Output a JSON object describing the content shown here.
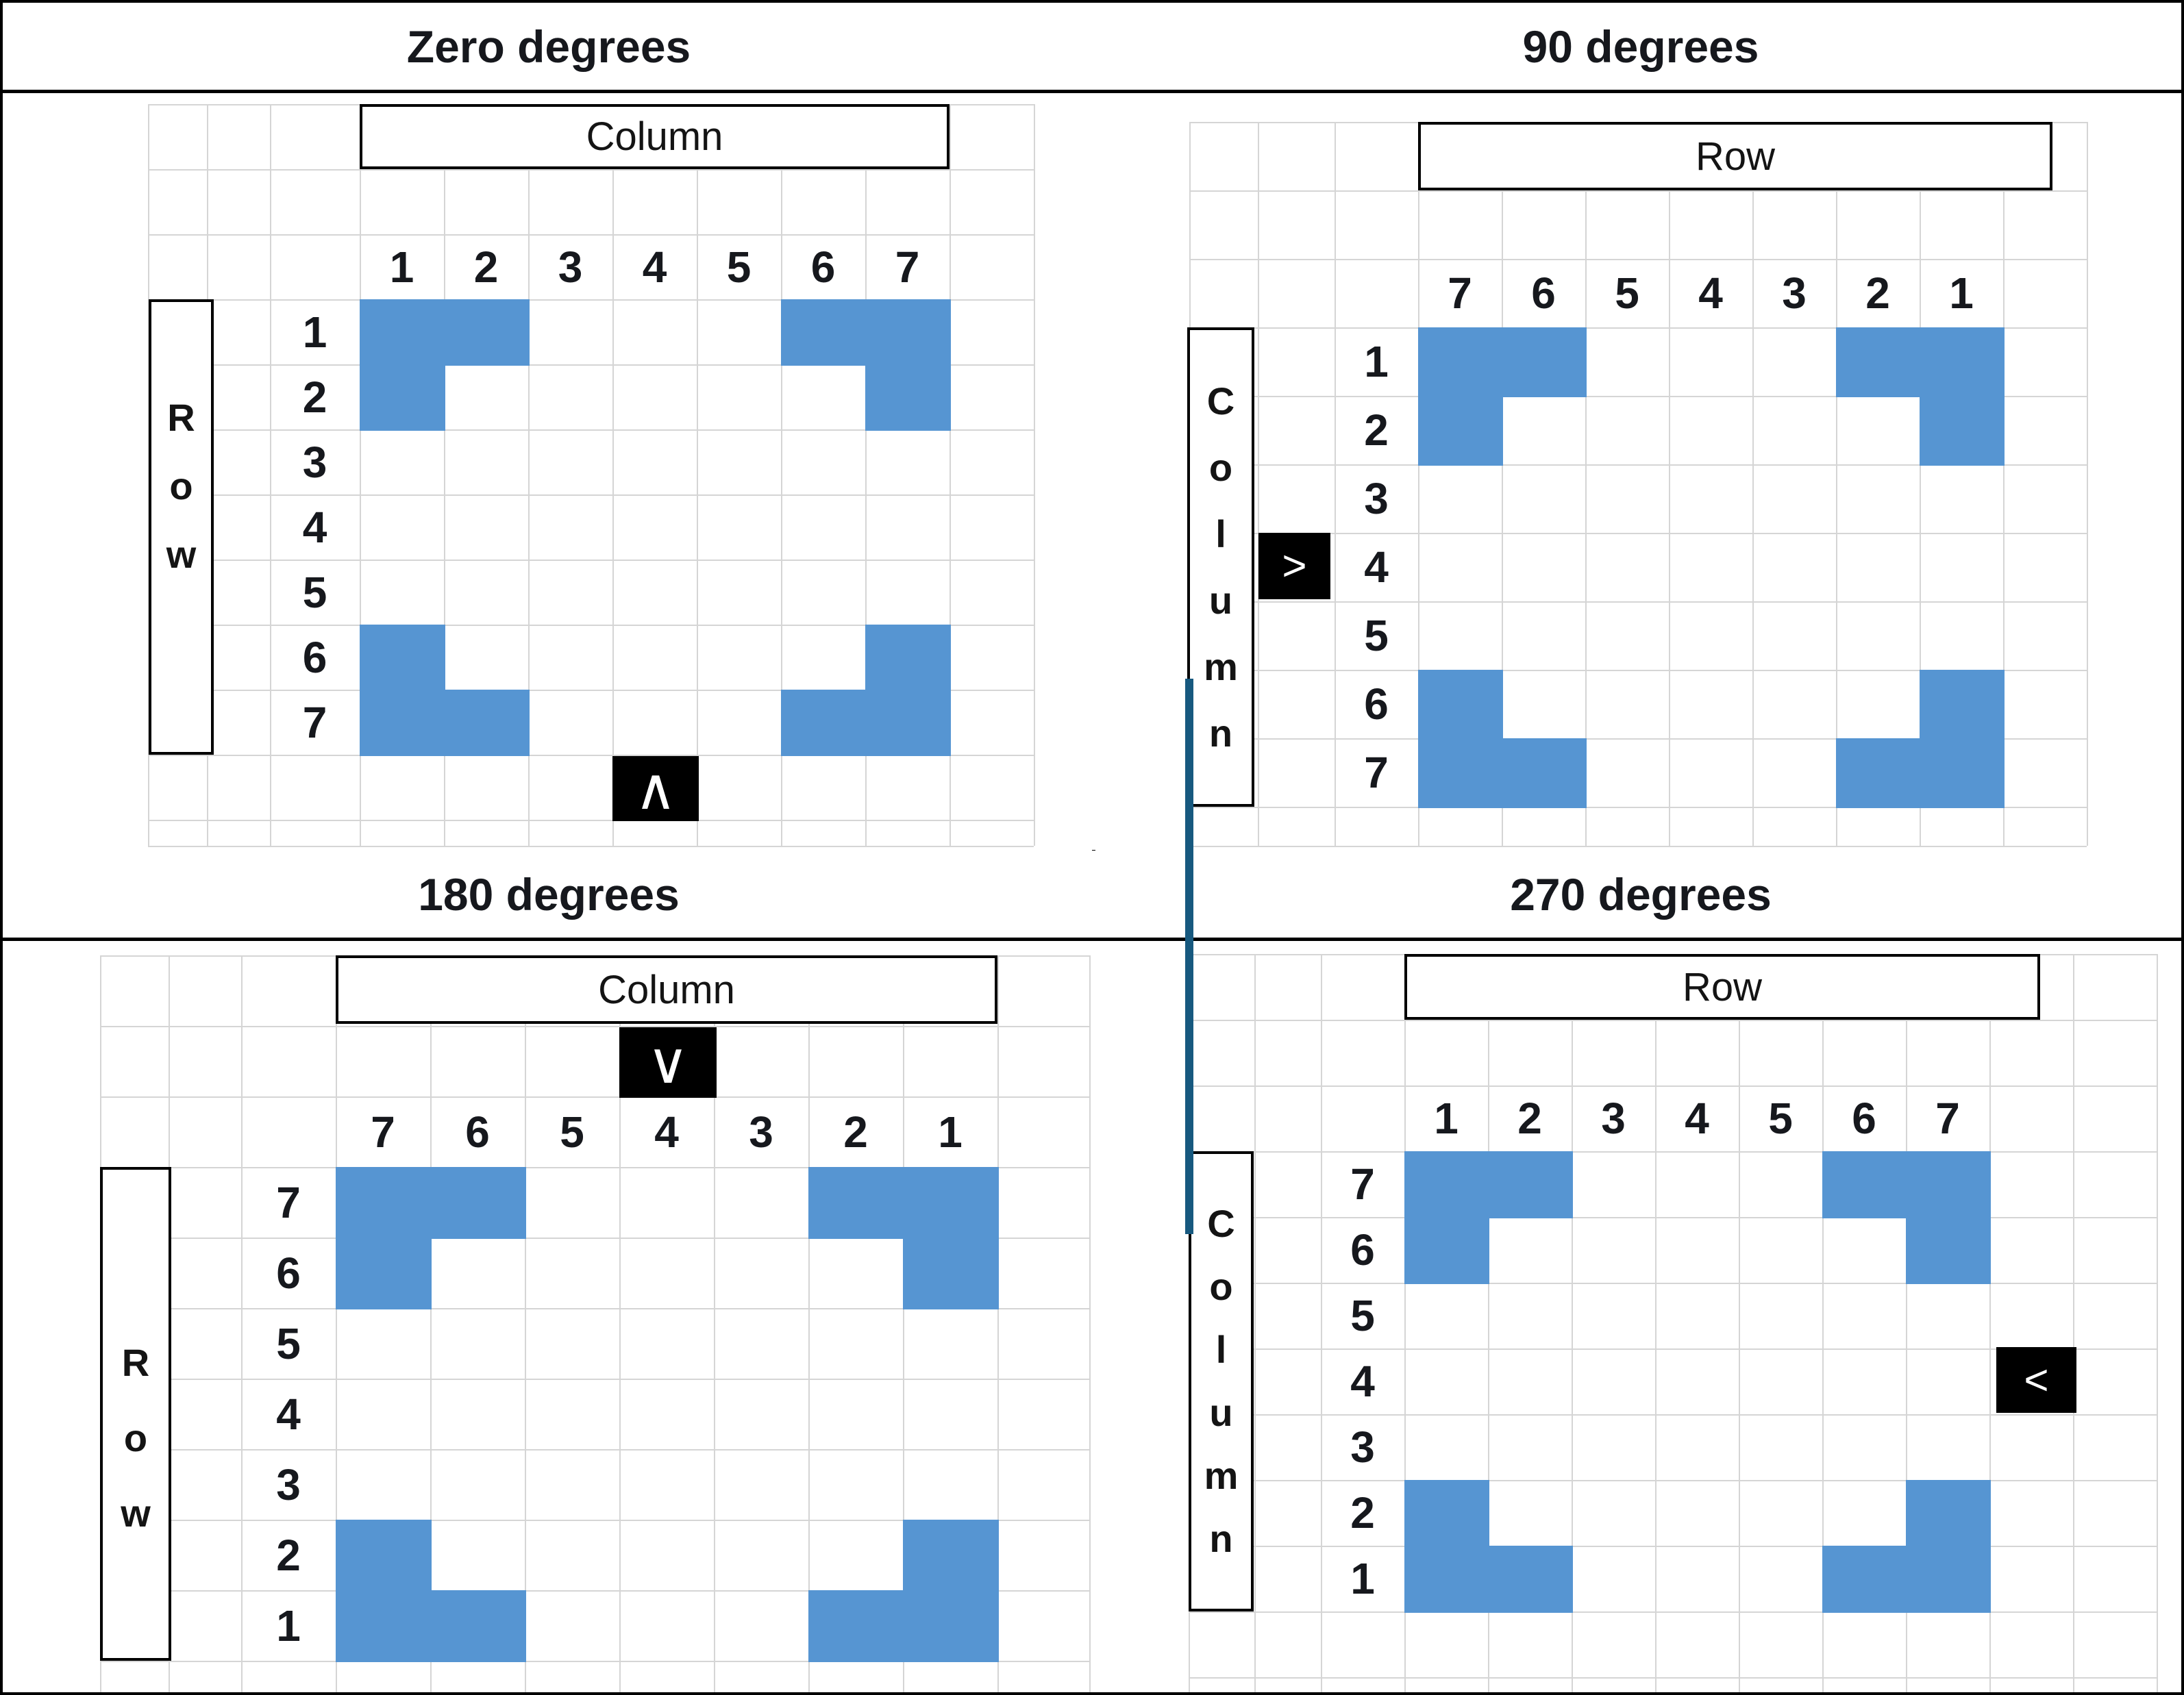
{
  "figure": {
    "description": "Four worksheet grids showing the same corner pattern under rotation",
    "panels": [
      {
        "id": "p0",
        "title": "Zero degrees",
        "top_box_label": "Column",
        "side_box_label": "Row",
        "column_labels": [
          "1",
          "2",
          "3",
          "4",
          "5",
          "6",
          "7"
        ],
        "row_labels": [
          "1",
          "2",
          "3",
          "4",
          "5",
          "6",
          "7"
        ],
        "arrow_glyph": "∧",
        "arrow_location": "below-grid-under-column-4",
        "filled_cells": [
          [
            1,
            1
          ],
          [
            1,
            2
          ],
          [
            1,
            6
          ],
          [
            1,
            7
          ],
          [
            2,
            1
          ],
          [
            2,
            7
          ],
          [
            6,
            1
          ],
          [
            6,
            7
          ],
          [
            7,
            1
          ],
          [
            7,
            2
          ],
          [
            7,
            6
          ],
          [
            7,
            7
          ]
        ]
      },
      {
        "id": "p90",
        "title": "90 degrees",
        "top_box_label": "Row",
        "side_box_label": "Column",
        "column_labels": [
          "7",
          "6",
          "5",
          "4",
          "3",
          "2",
          "1"
        ],
        "row_labels": [
          "1",
          "2",
          "3",
          "4",
          "5",
          "6",
          "7"
        ],
        "arrow_glyph": ">",
        "arrow_location": "left-of-row-4",
        "filled_cells": [
          [
            1,
            1
          ],
          [
            1,
            2
          ],
          [
            1,
            6
          ],
          [
            1,
            7
          ],
          [
            2,
            1
          ],
          [
            2,
            7
          ],
          [
            6,
            1
          ],
          [
            6,
            7
          ],
          [
            7,
            1
          ],
          [
            7,
            2
          ],
          [
            7,
            6
          ],
          [
            7,
            7
          ]
        ]
      },
      {
        "id": "p180",
        "title": "180 degrees",
        "top_box_label": "Column",
        "side_box_label": "Row",
        "column_labels": [
          "7",
          "6",
          "5",
          "4",
          "3",
          "2",
          "1"
        ],
        "row_labels": [
          "7",
          "6",
          "5",
          "4",
          "3",
          "2",
          "1"
        ],
        "arrow_glyph": "∨",
        "arrow_location": "above-grid-under-column-4",
        "filled_cells": [
          [
            1,
            1
          ],
          [
            1,
            2
          ],
          [
            1,
            6
          ],
          [
            1,
            7
          ],
          [
            2,
            1
          ],
          [
            2,
            7
          ],
          [
            6,
            1
          ],
          [
            6,
            7
          ],
          [
            7,
            1
          ],
          [
            7,
            2
          ],
          [
            7,
            6
          ],
          [
            7,
            7
          ]
        ]
      },
      {
        "id": "p270",
        "title": "270 degrees",
        "top_box_label": "Row",
        "side_box_label": "Column",
        "column_labels": [
          "1",
          "2",
          "3",
          "4",
          "5",
          "6",
          "7"
        ],
        "row_labels": [
          "7",
          "6",
          "5",
          "4",
          "3",
          "2",
          "1"
        ],
        "arrow_glyph": "<",
        "arrow_location": "right-of-row-4",
        "filled_cells": [
          [
            1,
            1
          ],
          [
            1,
            2
          ],
          [
            1,
            6
          ],
          [
            1,
            7
          ],
          [
            2,
            1
          ],
          [
            2,
            7
          ],
          [
            6,
            1
          ],
          [
            6,
            7
          ],
          [
            7,
            1
          ],
          [
            7,
            2
          ],
          [
            7,
            6
          ],
          [
            7,
            7
          ]
        ]
      }
    ],
    "connector_line": {
      "links": "Column side boxes of the 90 degrees and 270 degrees panels"
    },
    "colors": {
      "filled_cell": "#5695D2",
      "gridline": "#D5D5D5",
      "text": "#16181D",
      "box_border": "#000000",
      "panel_border": "#000000",
      "arrow_bg": "#000000",
      "arrow_fg": "#FFFFFF",
      "connector": "#17597F"
    }
  }
}
